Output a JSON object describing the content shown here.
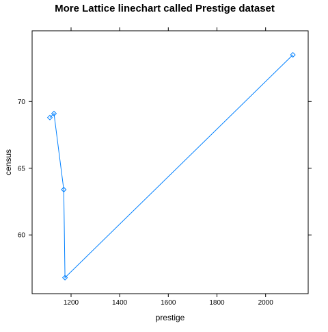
{
  "chart_data": {
    "type": "line",
    "title": "More Lattice linechart called Prestige dataset",
    "xlabel": "prestige",
    "ylabel": "census",
    "xlim": [
      1040,
      2175
    ],
    "ylim": [
      55.6,
      75.3
    ],
    "xticks": [
      1200,
      1400,
      1600,
      1800,
      2000
    ],
    "yticks": [
      60,
      65,
      70
    ],
    "grid": false,
    "series": [
      {
        "color": "#0080ff",
        "marker": "diamond",
        "points": [
          {
            "x": 1113,
            "y": 68.8
          },
          {
            "x": 1130,
            "y": 69.1
          },
          {
            "x": 1170,
            "y": 63.4
          },
          {
            "x": 1175,
            "y": 56.8
          },
          {
            "x": 2112,
            "y": 73.5
          }
        ]
      }
    ]
  }
}
